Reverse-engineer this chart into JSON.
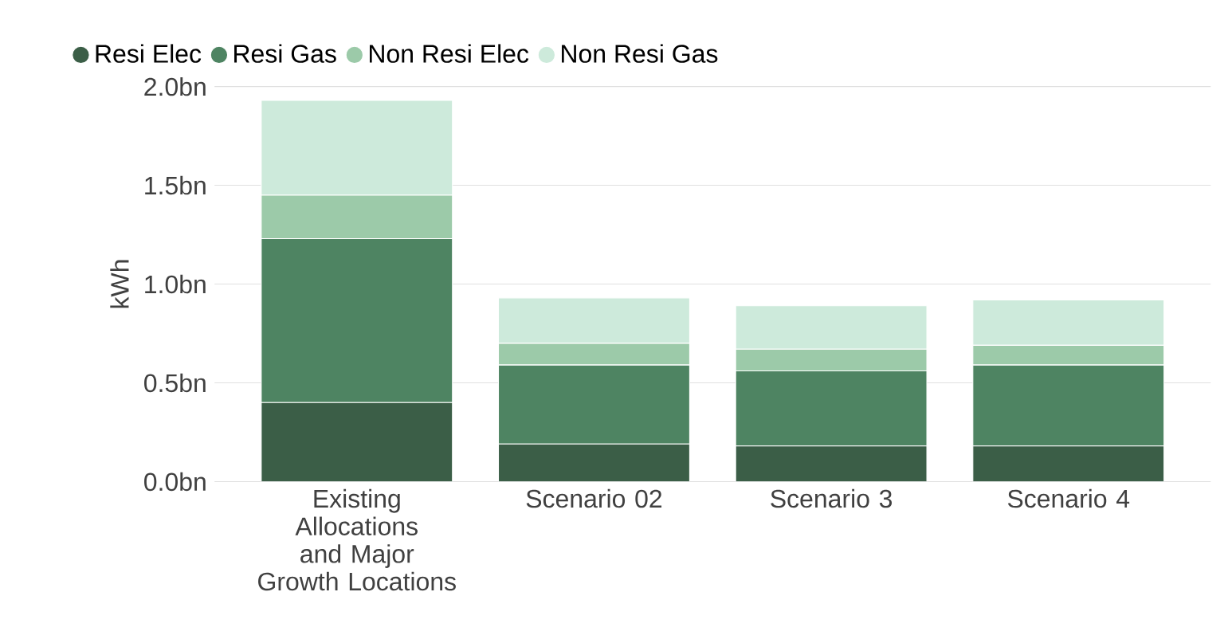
{
  "chart_data": {
    "type": "bar",
    "stacked": true,
    "ylabel": "kWh",
    "categories": [
      "Existing Allocations and Major Growth Locations",
      "Scenario 02",
      "Scenario 3",
      "Scenario 4"
    ],
    "series": [
      {
        "name": "Resi Elec",
        "color": "#3b5e47",
        "values": [
          0.4,
          0.19,
          0.18,
          0.18
        ]
      },
      {
        "name": "Resi Gas",
        "color": "#4e8462",
        "values": [
          0.83,
          0.4,
          0.38,
          0.41
        ]
      },
      {
        "name": "Non Resi Elec",
        "color": "#9ccaa9",
        "values": [
          0.22,
          0.11,
          0.11,
          0.1
        ]
      },
      {
        "name": "Non Resi Gas",
        "color": "#cdeadb",
        "values": [
          0.48,
          0.23,
          0.22,
          0.23
        ]
      }
    ],
    "ylim": [
      0,
      2.0
    ],
    "yticks": [
      {
        "value": 0,
        "label": "0.0bn"
      },
      {
        "value": 0.5,
        "label": "0.5bn"
      },
      {
        "value": 1.0,
        "label": "1.0bn"
      },
      {
        "value": 1.5,
        "label": "1.5bn"
      },
      {
        "value": 2.0,
        "label": "2.0bn"
      }
    ],
    "grid": "y",
    "legend": "top left",
    "marker": "circle"
  }
}
